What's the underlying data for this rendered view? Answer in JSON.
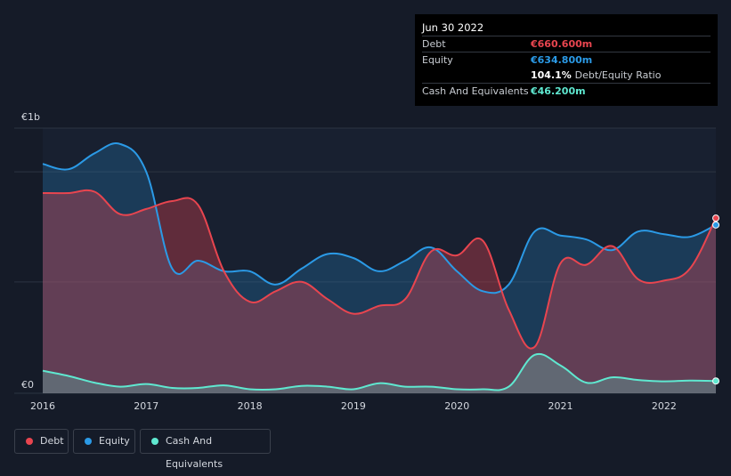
{
  "tooltip": {
    "date": "Jun 30 2022",
    "debt_label": "Debt",
    "debt_value": "€660.600m",
    "equity_label": "Equity",
    "equity_value": "€634.800m",
    "ratio_value": "104.1%",
    "ratio_label": "Debt/Equity Ratio",
    "cash_label": "Cash And Equivalents",
    "cash_value": "€46.200m"
  },
  "legend": [
    {
      "label": "Debt",
      "color": "#e8454f"
    },
    {
      "label": "Equity",
      "color": "#2b9ae6"
    },
    {
      "label": "Cash And Equivalents",
      "color": "#5fe8d0"
    }
  ],
  "chart_data": {
    "type": "area",
    "title": "",
    "xlabel": "",
    "ylabel": "",
    "ylim": [
      0,
      1000
    ],
    "xlim": [
      2016,
      2022.5
    ],
    "y_tick_labels": [
      {
        "value": 1000,
        "label": "€1b"
      },
      {
        "value": 0,
        "label": "€0"
      }
    ],
    "x_tick_labels": [
      "2016",
      "2017",
      "2018",
      "2019",
      "2020",
      "2021",
      "2022"
    ],
    "gridlines_y": [
      1000,
      835,
      420,
      0
    ],
    "unit": "€ millions",
    "series": [
      {
        "name": "Debt",
        "color": "#e8454f",
        "x": [
          2016,
          2016.25,
          2016.5,
          2016.75,
          2017,
          2017.25,
          2017.5,
          2017.75,
          2018,
          2018.25,
          2018.5,
          2018.75,
          2019,
          2019.25,
          2019.5,
          2019.75,
          2020,
          2020.25,
          2020.5,
          2020.75,
          2021,
          2021.25,
          2021.5,
          2021.75,
          2022,
          2022.25,
          2022.5
        ],
        "values": [
          755,
          755,
          760,
          675,
          695,
          725,
          710,
          460,
          345,
          385,
          420,
          355,
          300,
          330,
          355,
          535,
          520,
          575,
          315,
          175,
          490,
          485,
          555,
          430,
          425,
          470,
          660.6
        ]
      },
      {
        "name": "Equity",
        "color": "#2b9ae6",
        "x": [
          2016,
          2016.25,
          2016.5,
          2016.75,
          2017,
          2017.25,
          2017.5,
          2017.75,
          2018,
          2018.25,
          2018.5,
          2018.75,
          2019,
          2019.25,
          2019.5,
          2019.75,
          2020,
          2020.25,
          2020.5,
          2020.75,
          2021,
          2021.25,
          2021.5,
          2021.75,
          2022,
          2022.25,
          2022.5
        ],
        "values": [
          865,
          845,
          905,
          940,
          835,
          470,
          500,
          460,
          460,
          410,
          470,
          525,
          510,
          460,
          500,
          550,
          460,
          385,
          410,
          610,
          595,
          580,
          540,
          610,
          600,
          590,
          634.8
        ]
      },
      {
        "name": "Cash And Equivalents",
        "color": "#5fe8d0",
        "x": [
          2016,
          2016.25,
          2016.5,
          2016.75,
          2017,
          2017.25,
          2017.5,
          2017.75,
          2018,
          2018.25,
          2018.5,
          2018.75,
          2019,
          2019.25,
          2019.5,
          2019.75,
          2020,
          2020.25,
          2020.5,
          2020.75,
          2021,
          2021.25,
          2021.5,
          2021.75,
          2022,
          2022.25,
          2022.5
        ],
        "values": [
          85,
          65,
          40,
          25,
          35,
          20,
          20,
          30,
          15,
          15,
          28,
          25,
          15,
          38,
          25,
          25,
          15,
          15,
          25,
          145,
          105,
          40,
          60,
          50,
          45,
          48,
          46.2
        ]
      }
    ]
  }
}
